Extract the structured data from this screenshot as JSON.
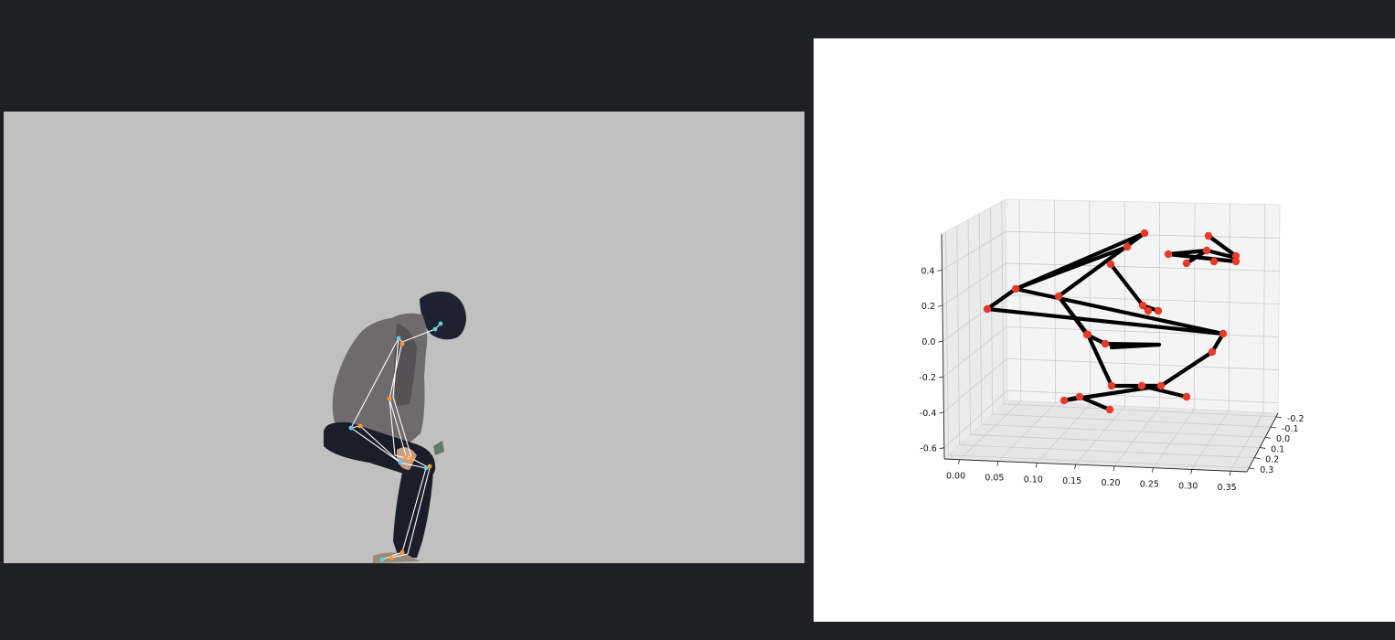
{
  "colors": {
    "background": "#1f2023",
    "video_background": "#c0c0c0",
    "joint": "#e8392b",
    "bone": "#000000",
    "overlay_skeleton": "#ffffff",
    "overlay_joint_a": "#5ad0e6",
    "overlay_joint_b": "#ff9d2e"
  },
  "chart_data": {
    "type": "scatter",
    "projection": "3d",
    "grid": true,
    "x_axis": {
      "ticks": [
        "0.00",
        "0.05",
        "0.10",
        "0.15",
        "0.20",
        "0.25",
        "0.30",
        "0.35"
      ]
    },
    "y_axis": {
      "ticks": [
        "-0.2",
        "-0.1",
        "0.0",
        "0.1",
        "0.2",
        "0.3"
      ]
    },
    "z_axis": {
      "ticks": [
        "0.4",
        "0.2",
        "0.0",
        "-0.2",
        "-0.4",
        "-0.6"
      ]
    }
  }
}
